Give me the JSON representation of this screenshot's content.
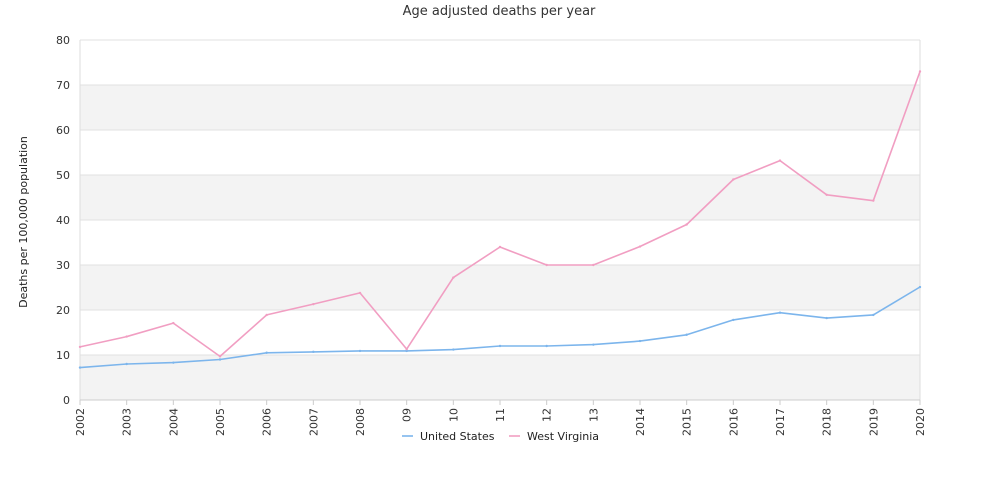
{
  "chart_data": {
    "type": "line",
    "title": "Age adjusted deaths per year",
    "xlabel": "",
    "ylabel": "Deaths per 100,000 population",
    "ylim": [
      0,
      80
    ],
    "yticks": [
      0,
      10,
      20,
      30,
      40,
      50,
      60,
      70,
      80
    ],
    "grid": "horizontal bands",
    "legend": "bottom-center",
    "categories": [
      "2002",
      "2003",
      "2004",
      "2005",
      "2006",
      "2007",
      "2008",
      "09",
      "10",
      "11",
      "12",
      "13",
      "2014",
      "2015",
      "2016",
      "2017",
      "2018",
      "2019",
      "2020"
    ],
    "series": [
      {
        "name": "United States",
        "color": "#7cb5ec",
        "values": [
          7.2,
          8.0,
          8.3,
          9.0,
          10.5,
          10.7,
          10.9,
          10.9,
          11.2,
          12.0,
          12.0,
          12.3,
          13.1,
          14.5,
          17.8,
          19.4,
          18.2,
          18.9,
          25.1
        ]
      },
      {
        "name": "West Virginia",
        "color": "#f19ec2",
        "values": [
          11.8,
          14.1,
          17.1,
          9.7,
          18.9,
          21.3,
          23.8,
          11.3,
          27.2,
          34.0,
          30.0,
          30.0,
          34.1,
          39.0,
          49.0,
          53.2,
          45.6,
          44.3,
          73.0
        ]
      }
    ]
  }
}
